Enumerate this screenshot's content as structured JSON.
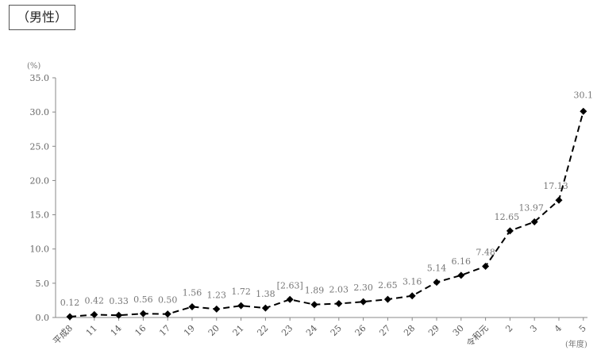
{
  "chart_data": {
    "type": "line",
    "title": "（男性）",
    "ylabel": "(%)",
    "xlabel": "(年度)",
    "ylim": [
      0,
      35
    ],
    "yticks": [
      "0.0",
      "5.0",
      "10.0",
      "15.0",
      "20.0",
      "25.0",
      "30.0",
      "35.0"
    ],
    "grid": false,
    "line_style": "dashed",
    "marker": "diamond",
    "series_color": "#000000",
    "categories": [
      "平成8",
      "11",
      "14",
      "16",
      "17",
      "19",
      "20",
      "21",
      "22",
      "23",
      "24",
      "25",
      "26",
      "27",
      "28",
      "29",
      "30",
      "令和元",
      "2",
      "3",
      "4",
      "5"
    ],
    "values": [
      0.12,
      0.42,
      0.33,
      0.56,
      0.5,
      1.56,
      1.23,
      1.72,
      1.38,
      2.63,
      1.89,
      2.03,
      2.3,
      2.65,
      3.16,
      5.14,
      6.16,
      7.48,
      12.65,
      13.97,
      17.13,
      30.1
    ],
    "data_labels": [
      "0.12",
      "0.42",
      "0.33",
      "0.56",
      "0.50",
      "1.56",
      "1.23",
      "1.72",
      "1.38",
      "[2.63]",
      "1.89",
      "2.03",
      "2.30",
      "2.65",
      "3.16",
      "5.14",
      "6.16",
      "7.48",
      "12.65",
      "13.97",
      "17.13",
      "30.1"
    ]
  }
}
